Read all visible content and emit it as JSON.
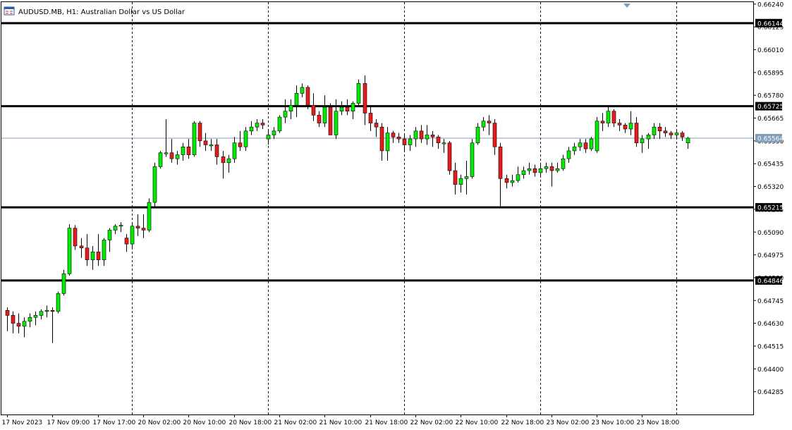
{
  "header": {
    "title": "AUDUSD.MB, H1:  Australian Dollar vs US Dollar",
    "icon": "chart-window-icon"
  },
  "colors": {
    "bull": "#00ee00",
    "bear": "#e81c1c",
    "candle_outline": "#000000",
    "level_line": "#000000",
    "current_price_line": "#7f9db9",
    "grid": "#000000",
    "background": "#ffffff"
  },
  "chart_data": {
    "type": "candlestick",
    "symbol": "AUDUSD.MB",
    "timeframe": "H1",
    "title": "Australian Dollar vs US Dollar",
    "ylim": [
      0.6417,
      0.6625
    ],
    "y_ticks": [
      "0.66240",
      "0.66125",
      "0.66010",
      "0.65895",
      "0.65780",
      "0.65665",
      "0.65550",
      "0.65435",
      "0.65320",
      "0.65205",
      "0.65090",
      "0.64975",
      "0.64860",
      "0.64745",
      "0.64630",
      "0.64515",
      "0.64400",
      "0.64285"
    ],
    "x_ticks": [
      "17 Nov 2023",
      "17 Nov 09:00",
      "17 Nov 17:00",
      "20 Nov 02:00",
      "20 Nov 10:00",
      "20 Nov 18:00",
      "21 Nov 02:00",
      "21 Nov 10:00",
      "21 Nov 18:00",
      "22 Nov 02:00",
      "22 Nov 10:00",
      "22 Nov 18:00",
      "23 Nov 02:00",
      "23 Nov 10:00",
      "23 Nov 18:00"
    ],
    "x_tick_bar_index": [
      0,
      8,
      16,
      24,
      32,
      40,
      48,
      56,
      64,
      72,
      80,
      88,
      96,
      104,
      112
    ],
    "session_separators_bar_index": [
      22,
      46,
      70,
      94,
      118
    ],
    "grid": "vertical-dashed",
    "levels": [
      0.66144,
      0.65725,
      0.65215,
      0.64846
    ],
    "level_labels": [
      "0.66144",
      "0.65725",
      "0.65215",
      "0.64846"
    ],
    "current_price": 0.65564,
    "current_price_label": "0.65564",
    "candles": [
      {
        "o": 0.64695,
        "h": 0.6471,
        "l": 0.6459,
        "c": 0.6467
      },
      {
        "o": 0.6467,
        "h": 0.6469,
        "l": 0.6458,
        "c": 0.6463
      },
      {
        "o": 0.6463,
        "h": 0.6468,
        "l": 0.6458,
        "c": 0.64615
      },
      {
        "o": 0.64615,
        "h": 0.6466,
        "l": 0.6456,
        "c": 0.6464
      },
      {
        "o": 0.6464,
        "h": 0.6468,
        "l": 0.6461,
        "c": 0.6466
      },
      {
        "o": 0.6466,
        "h": 0.6469,
        "l": 0.6462,
        "c": 0.6467
      },
      {
        "o": 0.6467,
        "h": 0.647,
        "l": 0.6465,
        "c": 0.6469
      },
      {
        "o": 0.6469,
        "h": 0.6472,
        "l": 0.6466,
        "c": 0.64695
      },
      {
        "o": 0.64695,
        "h": 0.6471,
        "l": 0.6453,
        "c": 0.6469
      },
      {
        "o": 0.6469,
        "h": 0.6479,
        "l": 0.6468,
        "c": 0.6478
      },
      {
        "o": 0.6478,
        "h": 0.649,
        "l": 0.6477,
        "c": 0.6488
      },
      {
        "o": 0.6488,
        "h": 0.6513,
        "l": 0.6487,
        "c": 0.6511
      },
      {
        "o": 0.6511,
        "h": 0.65125,
        "l": 0.65,
        "c": 0.6502
      },
      {
        "o": 0.6502,
        "h": 0.6506,
        "l": 0.6496,
        "c": 0.6501
      },
      {
        "o": 0.6501,
        "h": 0.6508,
        "l": 0.6492,
        "c": 0.6495
      },
      {
        "o": 0.6495,
        "h": 0.6502,
        "l": 0.649,
        "c": 0.6499
      },
      {
        "o": 0.6499,
        "h": 0.6508,
        "l": 0.6492,
        "c": 0.6495
      },
      {
        "o": 0.6495,
        "h": 0.6506,
        "l": 0.6492,
        "c": 0.6505
      },
      {
        "o": 0.6505,
        "h": 0.6511,
        "l": 0.6499,
        "c": 0.651
      },
      {
        "o": 0.651,
        "h": 0.6513,
        "l": 0.6508,
        "c": 0.6512
      },
      {
        "o": 0.6512,
        "h": 0.6514,
        "l": 0.6509,
        "c": 0.65125
      },
      {
        "o": 0.6506,
        "h": 0.6508,
        "l": 0.6499,
        "c": 0.6503
      },
      {
        "o": 0.6503,
        "h": 0.6513,
        "l": 0.6501,
        "c": 0.6512
      },
      {
        "o": 0.6512,
        "h": 0.6518,
        "l": 0.6507,
        "c": 0.6511
      },
      {
        "o": 0.6511,
        "h": 0.6518,
        "l": 0.6506,
        "c": 0.651
      },
      {
        "o": 0.651,
        "h": 0.6526,
        "l": 0.6509,
        "c": 0.6524
      },
      {
        "o": 0.6524,
        "h": 0.6544,
        "l": 0.6522,
        "c": 0.6542
      },
      {
        "o": 0.6542,
        "h": 0.655,
        "l": 0.6541,
        "c": 0.6549
      },
      {
        "o": 0.6549,
        "h": 0.6566,
        "l": 0.6547,
        "c": 0.6549
      },
      {
        "o": 0.6549,
        "h": 0.6556,
        "l": 0.6544,
        "c": 0.6546
      },
      {
        "o": 0.6546,
        "h": 0.655,
        "l": 0.6543,
        "c": 0.6548
      },
      {
        "o": 0.6548,
        "h": 0.6554,
        "l": 0.6545,
        "c": 0.6552
      },
      {
        "o": 0.6552,
        "h": 0.6556,
        "l": 0.6546,
        "c": 0.6548
      },
      {
        "o": 0.6548,
        "h": 0.6565,
        "l": 0.6547,
        "c": 0.6564
      },
      {
        "o": 0.6564,
        "h": 0.6565,
        "l": 0.6552,
        "c": 0.6555
      },
      {
        "o": 0.6555,
        "h": 0.6559,
        "l": 0.655,
        "c": 0.6553
      },
      {
        "o": 0.6553,
        "h": 0.6556,
        "l": 0.655,
        "c": 0.6553
      },
      {
        "o": 0.6553,
        "h": 0.6556,
        "l": 0.6543,
        "c": 0.6547
      },
      {
        "o": 0.6547,
        "h": 0.655,
        "l": 0.6536,
        "c": 0.6544
      },
      {
        "o": 0.6544,
        "h": 0.6548,
        "l": 0.6539,
        "c": 0.6546
      },
      {
        "o": 0.6546,
        "h": 0.6557,
        "l": 0.6544,
        "c": 0.6554
      },
      {
        "o": 0.6554,
        "h": 0.656,
        "l": 0.655,
        "c": 0.6552
      },
      {
        "o": 0.6552,
        "h": 0.6562,
        "l": 0.655,
        "c": 0.656
      },
      {
        "o": 0.656,
        "h": 0.6565,
        "l": 0.6558,
        "c": 0.6562
      },
      {
        "o": 0.6562,
        "h": 0.6566,
        "l": 0.656,
        "c": 0.6564
      },
      {
        "o": 0.6564,
        "h": 0.6566,
        "l": 0.6561,
        "c": 0.6563
      },
      {
        "o": 0.6556,
        "h": 0.656,
        "l": 0.6553,
        "c": 0.6558
      },
      {
        "o": 0.6558,
        "h": 0.6562,
        "l": 0.6556,
        "c": 0.656
      },
      {
        "o": 0.656,
        "h": 0.6568,
        "l": 0.6559,
        "c": 0.6567
      },
      {
        "o": 0.6567,
        "h": 0.6576,
        "l": 0.6564,
        "c": 0.657
      },
      {
        "o": 0.657,
        "h": 0.6576,
        "l": 0.6566,
        "c": 0.6573
      },
      {
        "o": 0.6573,
        "h": 0.6583,
        "l": 0.6567,
        "c": 0.6579
      },
      {
        "o": 0.6579,
        "h": 0.6584,
        "l": 0.6577,
        "c": 0.6582
      },
      {
        "o": 0.6582,
        "h": 0.6583,
        "l": 0.6571,
        "c": 0.6573
      },
      {
        "o": 0.6573,
        "h": 0.6579,
        "l": 0.6565,
        "c": 0.6568
      },
      {
        "o": 0.6568,
        "h": 0.657,
        "l": 0.6562,
        "c": 0.6564
      },
      {
        "o": 0.6564,
        "h": 0.6578,
        "l": 0.6562,
        "c": 0.6572
      },
      {
        "o": 0.6572,
        "h": 0.6574,
        "l": 0.6558,
        "c": 0.6558
      },
      {
        "o": 0.6558,
        "h": 0.6576,
        "l": 0.6556,
        "c": 0.657
      },
      {
        "o": 0.657,
        "h": 0.6575,
        "l": 0.6568,
        "c": 0.6572
      },
      {
        "o": 0.6572,
        "h": 0.6576,
        "l": 0.6568,
        "c": 0.657
      },
      {
        "o": 0.657,
        "h": 0.6575,
        "l": 0.6566,
        "c": 0.6574
      },
      {
        "o": 0.6574,
        "h": 0.6586,
        "l": 0.6572,
        "c": 0.6584
      },
      {
        "o": 0.6584,
        "h": 0.6588,
        "l": 0.6563,
        "c": 0.6569
      },
      {
        "o": 0.6569,
        "h": 0.6573,
        "l": 0.656,
        "c": 0.6564
      },
      {
        "o": 0.6564,
        "h": 0.6566,
        "l": 0.6557,
        "c": 0.6562
      },
      {
        "o": 0.6562,
        "h": 0.6564,
        "l": 0.6545,
        "c": 0.655
      },
      {
        "o": 0.655,
        "h": 0.6562,
        "l": 0.6545,
        "c": 0.6559
      },
      {
        "o": 0.6559,
        "h": 0.656,
        "l": 0.6554,
        "c": 0.6557
      },
      {
        "o": 0.6557,
        "h": 0.6559,
        "l": 0.6554,
        "c": 0.6556
      },
      {
        "o": 0.6556,
        "h": 0.6558,
        "l": 0.655,
        "c": 0.6553
      },
      {
        "o": 0.6553,
        "h": 0.6558,
        "l": 0.655,
        "c": 0.6556
      },
      {
        "o": 0.6556,
        "h": 0.6562,
        "l": 0.6552,
        "c": 0.656
      },
      {
        "o": 0.656,
        "h": 0.6563,
        "l": 0.6554,
        "c": 0.6556
      },
      {
        "o": 0.6556,
        "h": 0.6563,
        "l": 0.6553,
        "c": 0.6558
      },
      {
        "o": 0.6558,
        "h": 0.656,
        "l": 0.6552,
        "c": 0.6557
      },
      {
        "o": 0.6557,
        "h": 0.6558,
        "l": 0.6551,
        "c": 0.6554
      },
      {
        "o": 0.6554,
        "h": 0.6556,
        "l": 0.6549,
        "c": 0.6554
      },
      {
        "o": 0.6554,
        "h": 0.6555,
        "l": 0.6538,
        "c": 0.654
      },
      {
        "o": 0.654,
        "h": 0.6544,
        "l": 0.6528,
        "c": 0.6533
      },
      {
        "o": 0.6533,
        "h": 0.6538,
        "l": 0.6529,
        "c": 0.6536
      },
      {
        "o": 0.6536,
        "h": 0.6545,
        "l": 0.6528,
        "c": 0.6537
      },
      {
        "o": 0.6537,
        "h": 0.6556,
        "l": 0.6536,
        "c": 0.6554
      },
      {
        "o": 0.6554,
        "h": 0.6564,
        "l": 0.6553,
        "c": 0.6562
      },
      {
        "o": 0.6562,
        "h": 0.6567,
        "l": 0.656,
        "c": 0.6565
      },
      {
        "o": 0.6565,
        "h": 0.6568,
        "l": 0.6558,
        "c": 0.6564
      },
      {
        "o": 0.6564,
        "h": 0.6566,
        "l": 0.6548,
        "c": 0.6552
      },
      {
        "o": 0.6552,
        "h": 0.6554,
        "l": 0.6522,
        "c": 0.6536
      },
      {
        "o": 0.6536,
        "h": 0.6538,
        "l": 0.6531,
        "c": 0.6534
      },
      {
        "o": 0.6534,
        "h": 0.6538,
        "l": 0.6532,
        "c": 0.6535
      },
      {
        "o": 0.6535,
        "h": 0.6542,
        "l": 0.6534,
        "c": 0.6538
      },
      {
        "o": 0.6538,
        "h": 0.6542,
        "l": 0.6536,
        "c": 0.654
      },
      {
        "o": 0.654,
        "h": 0.6544,
        "l": 0.6538,
        "c": 0.6541
      },
      {
        "o": 0.6541,
        "h": 0.6543,
        "l": 0.6537,
        "c": 0.6539
      },
      {
        "o": 0.6539,
        "h": 0.6544,
        "l": 0.6537,
        "c": 0.6541
      },
      {
        "o": 0.6541,
        "h": 0.6544,
        "l": 0.6539,
        "c": 0.6542
      },
      {
        "o": 0.6542,
        "h": 0.6544,
        "l": 0.6532,
        "c": 0.654
      },
      {
        "o": 0.654,
        "h": 0.6544,
        "l": 0.6539,
        "c": 0.6541
      },
      {
        "o": 0.6541,
        "h": 0.6548,
        "l": 0.654,
        "c": 0.6546
      },
      {
        "o": 0.6546,
        "h": 0.6552,
        "l": 0.6544,
        "c": 0.655
      },
      {
        "o": 0.655,
        "h": 0.6554,
        "l": 0.6548,
        "c": 0.6552
      },
      {
        "o": 0.6552,
        "h": 0.6556,
        "l": 0.655,
        "c": 0.6554
      },
      {
        "o": 0.6554,
        "h": 0.6556,
        "l": 0.6549,
        "c": 0.6551
      },
      {
        "o": 0.6551,
        "h": 0.6557,
        "l": 0.655,
        "c": 0.6556
      },
      {
        "o": 0.655,
        "h": 0.6567,
        "l": 0.6549,
        "c": 0.6565
      },
      {
        "o": 0.6565,
        "h": 0.6569,
        "l": 0.656,
        "c": 0.6564
      },
      {
        "o": 0.6564,
        "h": 0.6573,
        "l": 0.6562,
        "c": 0.657
      },
      {
        "o": 0.657,
        "h": 0.6571,
        "l": 0.6562,
        "c": 0.6564
      },
      {
        "o": 0.6564,
        "h": 0.6566,
        "l": 0.656,
        "c": 0.6563
      },
      {
        "o": 0.6563,
        "h": 0.6564,
        "l": 0.6559,
        "c": 0.6561
      },
      {
        "o": 0.6561,
        "h": 0.657,
        "l": 0.6558,
        "c": 0.6564
      },
      {
        "o": 0.6564,
        "h": 0.6567,
        "l": 0.6552,
        "c": 0.6554
      },
      {
        "o": 0.6554,
        "h": 0.6558,
        "l": 0.6549,
        "c": 0.6556
      },
      {
        "o": 0.6556,
        "h": 0.6559,
        "l": 0.6551,
        "c": 0.6558
      },
      {
        "o": 0.6558,
        "h": 0.6564,
        "l": 0.6556,
        "c": 0.6562
      },
      {
        "o": 0.6562,
        "h": 0.6564,
        "l": 0.6556,
        "c": 0.656
      },
      {
        "o": 0.656,
        "h": 0.6562,
        "l": 0.6557,
        "c": 0.6559
      },
      {
        "o": 0.6559,
        "h": 0.656,
        "l": 0.6556,
        "c": 0.6558
      },
      {
        "o": 0.6558,
        "h": 0.656,
        "l": 0.6556,
        "c": 0.6559
      },
      {
        "o": 0.6559,
        "h": 0.656,
        "l": 0.6555,
        "c": 0.6557
      },
      {
        "o": 0.6554,
        "h": 0.6557,
        "l": 0.6551,
        "c": 0.65564
      }
    ]
  }
}
